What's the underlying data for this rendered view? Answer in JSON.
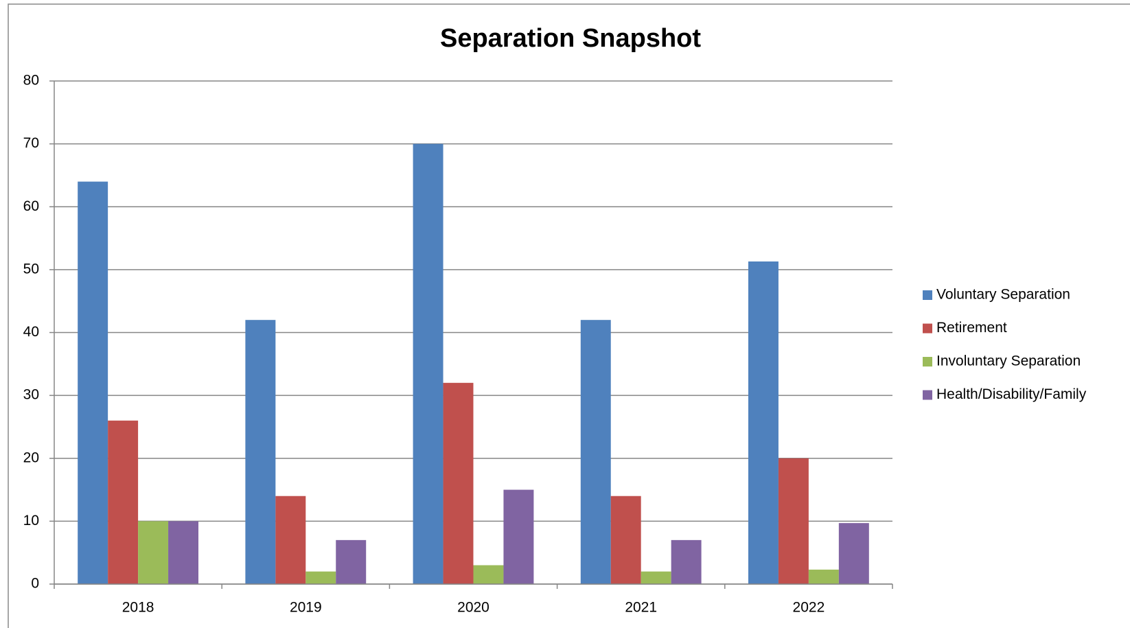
{
  "chart_data": {
    "type": "bar",
    "title": "Separation Snapshot",
    "categories": [
      "2018",
      "2019",
      "2020",
      "2021",
      "2022"
    ],
    "series": [
      {
        "name": "Voluntary Separation",
        "color": "#4f81bd",
        "values": [
          64,
          42,
          70,
          42,
          51.3
        ]
      },
      {
        "name": "Retirement",
        "color": "#c0504d",
        "values": [
          26,
          14,
          32,
          14,
          20
        ]
      },
      {
        "name": "Involuntary Separation",
        "color": "#9bbb59",
        "values": [
          10,
          2,
          3,
          2,
          2.3
        ]
      },
      {
        "name": "Health/Disability/Family",
        "color": "#8064a2",
        "values": [
          10,
          7,
          15,
          7,
          9.7
        ]
      }
    ],
    "ylim": [
      0,
      80
    ],
    "yticks": [
      0,
      10,
      20,
      30,
      40,
      50,
      60,
      70,
      80
    ],
    "grid": true,
    "legend": "right"
  }
}
